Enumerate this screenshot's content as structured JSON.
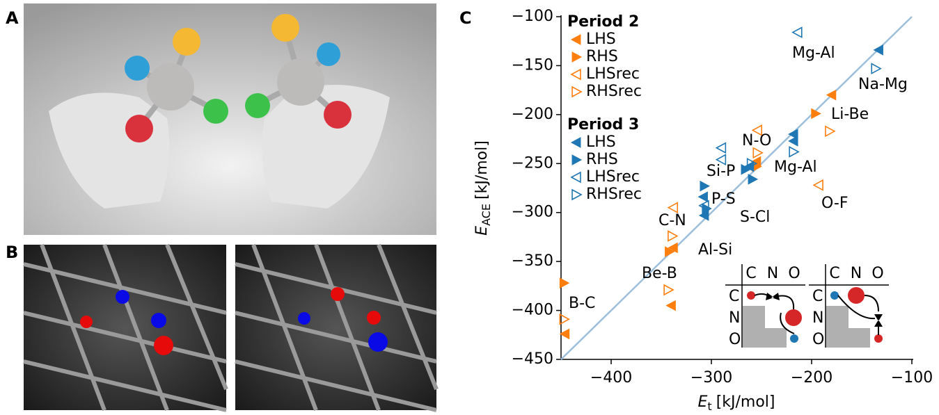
{
  "panels": [
    "A",
    "B",
    "C"
  ],
  "chart_data": {
    "type": "scatter",
    "xlabel": {
      "symbol": "E",
      "subscript": "t",
      "unit": "[kJ/mol]"
    },
    "ylabel": {
      "symbol": "E",
      "subscript": "ACE",
      "unit": "[kJ/mol]"
    },
    "xlim": [
      -450,
      -100
    ],
    "ylim": [
      -450,
      -100
    ],
    "xticks": [
      {
        "value": -400,
        "label": "−400"
      },
      {
        "value": -300,
        "label": "−300"
      },
      {
        "value": -200,
        "label": "−200"
      },
      {
        "value": -100,
        "label": "−100"
      }
    ],
    "yticks": [
      {
        "value": -450,
        "label": "−450"
      },
      {
        "value": -400,
        "label": "−400"
      },
      {
        "value": -350,
        "label": "−350"
      },
      {
        "value": -300,
        "label": "−300"
      },
      {
        "value": -250,
        "label": "−250"
      },
      {
        "value": -200,
        "label": "−200"
      },
      {
        "value": -150,
        "label": "−150"
      },
      {
        "value": -100,
        "label": "−100"
      }
    ],
    "legend_groups": [
      "Period 2",
      "Period 3"
    ],
    "series": [
      {
        "name": "LHS",
        "group": 0,
        "color": "#ff7f0e",
        "marker": "left",
        "filled": true,
        "x": [
          -180,
          -340,
          -446,
          -338,
          -255
        ],
        "y": [
          -180,
          -395,
          -424,
          -336,
          -248
        ]
      },
      {
        "name": "RHS",
        "group": 0,
        "color": "#ff7f0e",
        "marker": "right",
        "filled": true,
        "x": [
          -447,
          -196,
          -342,
          -255
        ],
        "y": [
          -372,
          -199,
          -340,
          -253
        ]
      },
      {
        "name": "LHSrec",
        "group": 0,
        "color": "#ff7f0e",
        "marker": "left",
        "filled": false,
        "x": [
          -338,
          -193,
          -254
        ],
        "y": [
          -295,
          -272,
          -216
        ]
      },
      {
        "name": "RHSrec",
        "group": 0,
        "color": "#ff7f0e",
        "marker": "right",
        "filled": false,
        "x": [
          -447,
          -343,
          -182,
          -254,
          -339
        ],
        "y": [
          -409,
          -379,
          -217,
          -239,
          -324
        ]
      },
      {
        "name": "LHS",
        "group": 1,
        "color": "#1f77b4",
        "marker": "left",
        "filled": true,
        "x": [
          -133,
          -218,
          -218,
          -262,
          -308,
          -307
        ],
        "y": [
          -134,
          -220,
          -227,
          -253,
          -284,
          -303
        ]
      },
      {
        "name": "RHS",
        "group": 1,
        "color": "#1f77b4",
        "marker": "right",
        "filled": true,
        "x": [
          -259,
          -307,
          -305,
          -266
        ],
        "y": [
          -266,
          -273,
          -296,
          -256
        ]
      },
      {
        "name": "LHSrec",
        "group": 1,
        "color": "#1f77b4",
        "marker": "left",
        "filled": false,
        "x": [
          -214,
          -290,
          -290,
          -307
        ],
        "y": [
          -116,
          -234,
          -246,
          -293
        ]
      },
      {
        "name": "RHSrec",
        "group": 1,
        "color": "#1f77b4",
        "marker": "right",
        "filled": false,
        "x": [
          -136,
          -218,
          -260
        ],
        "y": [
          -153,
          -238,
          -250
        ]
      }
    ],
    "reference_line": {
      "x": [
        -450,
        -100
      ],
      "y": [
        -450,
        -100
      ],
      "color": "#9bbfdc"
    },
    "annotations": [
      "B-C",
      "Be-B",
      "C-N",
      "Al-Si",
      "S-Cl",
      "P-S",
      "Si-P",
      "N-O",
      "Mg-Al",
      "O-F",
      "Li-Be",
      "Mg-Al",
      "Na-Mg"
    ],
    "inset_labels": [
      "C",
      "N",
      "O"
    ]
  }
}
